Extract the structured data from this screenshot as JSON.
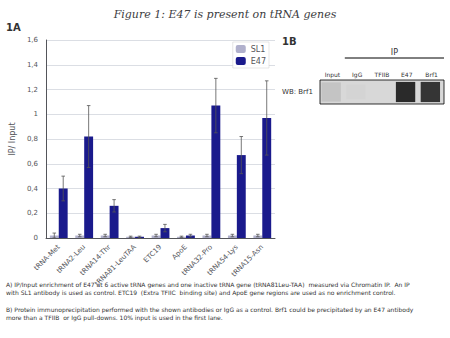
{
  "chart_data": {
    "type": "bar",
    "title": "Figure 1: E47 is present on tRNA genes",
    "categories": [
      "tRNA-Met",
      "tRNA2-Leu",
      "tRNA14-Thr",
      "tRNA81-LeuTAA",
      "ETC19",
      "ApoE",
      "tRNA32-Pro",
      "tRNA54-Lys",
      "tRNA15-Asn"
    ],
    "series": [
      {
        "name": "SL1",
        "color": "#b0b0cc",
        "values": [
          0.02,
          0.02,
          0.02,
          0.01,
          0.02,
          0.01,
          0.02,
          0.02,
          0.02
        ],
        "errors": [
          0.02,
          0.01,
          0.01,
          0.005,
          0.01,
          0.005,
          0.01,
          0.01,
          0.01
        ]
      },
      {
        "name": "E47",
        "color": "#1a1a8c",
        "values": [
          0.4,
          0.82,
          0.26,
          0.01,
          0.08,
          0.02,
          1.07,
          0.67,
          0.97
        ],
        "errors": [
          0.1,
          0.25,
          0.05,
          0.005,
          0.03,
          0.01,
          0.22,
          0.15,
          0.3
        ]
      }
    ],
    "ylabel": "IP/ Input",
    "ylim": [
      0,
      1.6
    ],
    "yticks": [
      0,
      {
        "value": 0.2,
        "label": "0,2"
      },
      {
        "value": 0.4,
        "label": "0,4"
      },
      {
        "value": 0.6,
        "label": "0,6"
      },
      {
        "value": 0.8,
        "label": "0,8"
      },
      1,
      {
        "value": 1.2,
        "label": "1,2"
      },
      {
        "value": 1.4,
        "label": "1,4"
      },
      {
        "value": 1.6,
        "label": "1,6"
      }
    ],
    "grid": true,
    "legend": "upper right",
    "annotations": {
      "panel_labels": [
        "1A",
        "1B"
      ],
      "blot_label": "WB: Brf1",
      "blot_group_label": "IP",
      "blot_lanes": [
        "Input",
        "IgG",
        "TFIIB",
        "E47",
        "Brf1"
      ],
      "captions": [
        "A) IP/Input enrichment of E47 at 6 active tRNA genes and one inactive tRNA gene (tRNA81Leu-TAA)  measured via Chromatin IP.  An IP\nwith SL1 antibody is used as control. ETC19  (Extra TFIIC  binding site) and ApoE gene regions are used as no enrichment control.",
        "B) Protein immunoprecipitation performed with the shown antibodies or IgG as a control. Brf1 could be precipitated by an E47 antibody\nmore than a TFIIB  or IgG pull-downs. 10% input is used in the first lane."
      ]
    }
  }
}
